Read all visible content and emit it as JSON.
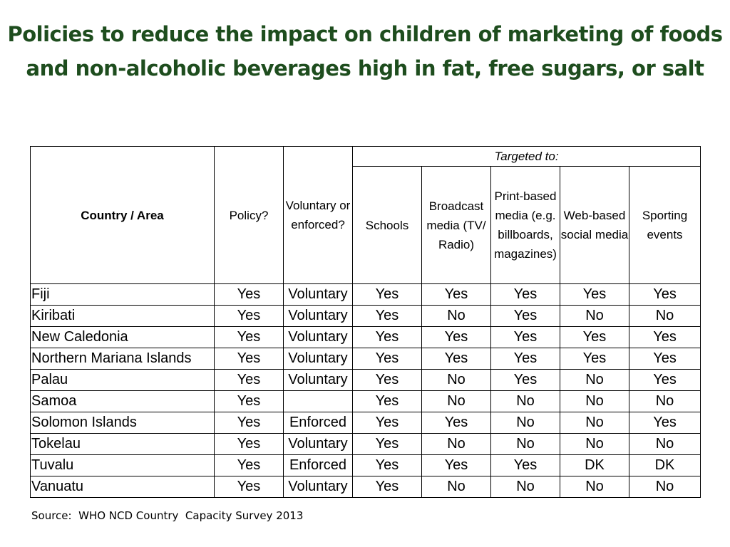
{
  "title": "Policies to reduce the impact on children of marketing of foods and non-alcoholic beverages high in fat, free sugars, or salt",
  "table": {
    "headers": {
      "country": "Country / Area",
      "policy": "Policy?",
      "voluntary": "Voluntary or enforced?",
      "targeted": "Targeted to:",
      "schools": "Schools",
      "broadcast": "Broadcast media (TV/ Radio)",
      "print": "Print-based media (e.g. billboards, magazines)",
      "web": "Web-based social media",
      "sporting": "Sporting events"
    },
    "rows": [
      [
        "Fiji",
        "Yes",
        "Voluntary",
        "Yes",
        "Yes",
        "Yes",
        "Yes",
        "Yes"
      ],
      [
        "Kiribati",
        "Yes",
        "Voluntary",
        "Yes",
        "No",
        "Yes",
        "No",
        "No"
      ],
      [
        "New Caledonia",
        "Yes",
        "Voluntary",
        "Yes",
        "Yes",
        "Yes",
        "Yes",
        "Yes"
      ],
      [
        "Northern Mariana Islands",
        "Yes",
        "Voluntary",
        "Yes",
        "Yes",
        "Yes",
        "Yes",
        "Yes"
      ],
      [
        "Palau",
        "Yes",
        "Voluntary",
        "Yes",
        "No",
        "Yes",
        "No",
        "Yes"
      ],
      [
        "Samoa",
        "Yes",
        "",
        "Yes",
        "No",
        "No",
        "No",
        "No"
      ],
      [
        "Solomon Islands",
        "Yes",
        "Enforced",
        "Yes",
        "Yes",
        "No",
        "No",
        "Yes"
      ],
      [
        "Tokelau",
        "Yes",
        "Voluntary",
        "Yes",
        "No",
        "No",
        "No",
        "No"
      ],
      [
        "Tuvalu",
        "Yes",
        "Enforced",
        "Yes",
        "Yes",
        "Yes",
        "DK",
        "DK"
      ],
      [
        "Vanuatu",
        "Yes",
        "Voluntary",
        "Yes",
        "No",
        "No",
        "No",
        "No"
      ]
    ]
  },
  "source": "Source:  WHO NCD Country  Capacity Survey 2013",
  "colors": {
    "title": "#1e4d1e"
  }
}
